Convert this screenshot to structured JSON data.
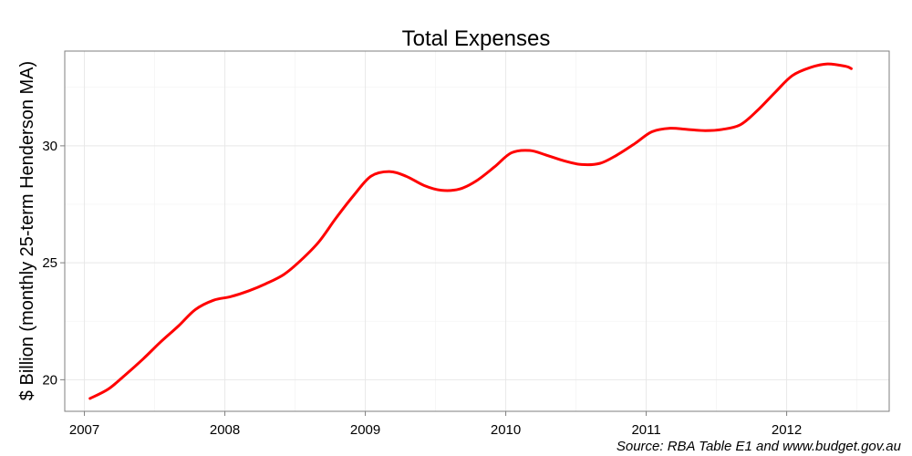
{
  "chart_data": {
    "type": "line",
    "title": "Total Expenses",
    "xlabel": "",
    "ylabel": "$ Billion (monthly 25-term Henderson MA)",
    "caption": "Source: RBA Table E1 and www.budget.gov.au",
    "xlim": [
      2006.86,
      2012.73
    ],
    "ylim": [
      18.65,
      34.05
    ],
    "x_ticks": [
      {
        "value": 2007,
        "label": "2007"
      },
      {
        "value": 2008,
        "label": "2008"
      },
      {
        "value": 2009,
        "label": "2009"
      },
      {
        "value": 2010,
        "label": "2010"
      },
      {
        "value": 2011,
        "label": "2011"
      },
      {
        "value": 2012,
        "label": "2012"
      }
    ],
    "y_ticks": [
      {
        "value": 20,
        "label": "20"
      },
      {
        "value": 25,
        "label": "25"
      },
      {
        "value": 30,
        "label": "30"
      }
    ],
    "grid": true,
    "series": [
      {
        "color": "#ff0000",
        "x": [
          2007.04,
          2007.17,
          2007.29,
          2007.42,
          2007.54,
          2007.67,
          2007.79,
          2007.92,
          2008.04,
          2008.17,
          2008.29,
          2008.42,
          2008.54,
          2008.67,
          2008.79,
          2008.92,
          2009.04,
          2009.17,
          2009.29,
          2009.42,
          2009.54,
          2009.67,
          2009.79,
          2009.92,
          2010.04,
          2010.17,
          2010.29,
          2010.42,
          2010.54,
          2010.67,
          2010.79,
          2010.92,
          2011.04,
          2011.17,
          2011.29,
          2011.42,
          2011.54,
          2011.67,
          2011.79,
          2011.92,
          2012.04,
          2012.17,
          2012.29,
          2012.42,
          2012.46
        ],
        "y": [
          19.2,
          19.6,
          20.2,
          20.9,
          21.6,
          22.3,
          23.0,
          23.4,
          23.55,
          23.8,
          24.1,
          24.5,
          25.1,
          25.9,
          26.9,
          27.9,
          28.7,
          28.9,
          28.7,
          28.3,
          28.1,
          28.15,
          28.5,
          29.1,
          29.7,
          29.8,
          29.6,
          29.35,
          29.2,
          29.25,
          29.6,
          30.1,
          30.6,
          30.75,
          30.7,
          30.65,
          30.7,
          30.9,
          31.5,
          32.3,
          33.0,
          33.35,
          33.5,
          33.4,
          33.3
        ]
      }
    ]
  }
}
